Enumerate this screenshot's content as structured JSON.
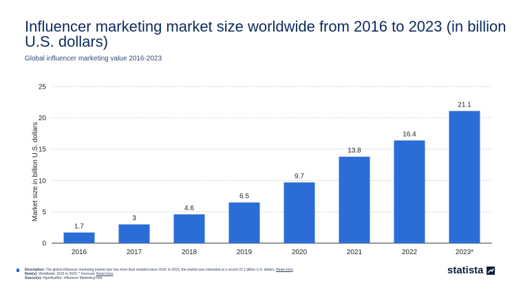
{
  "header": {
    "title": "Influencer marketing market size worldwide from 2016 to 2023 (in billion U.S. dollars)",
    "subtitle": "Global influencer marketing value 2016-2023"
  },
  "footer": {
    "description_label": "Description:",
    "description_text": "The global influencer marketing market size has more than doubled since 2019. In 2023, the market was estimated at a record 21.1 billion U.S. dollars.",
    "read_more": "Read more",
    "notes_label": "Note(s):",
    "notes_text": "Worldwide; 2016 to 2022; * Forecast;",
    "notes_read_more": "Read more",
    "sources_label": "Source(s):",
    "sources_text": "HypeAuditor; Influencer Marketing Hub"
  },
  "logo": {
    "text": "statista",
    "icon": "statista-logo-icon"
  },
  "colors": {
    "bar": "#2b6dd6",
    "title": "#0b2a5b",
    "grid": "#b8b8b8"
  },
  "chart_data": {
    "type": "bar",
    "categories": [
      "2016",
      "2017",
      "2018",
      "2019",
      "2020",
      "2021",
      "2022",
      "2023*"
    ],
    "values": [
      1.7,
      3,
      4.6,
      6.5,
      9.7,
      13.8,
      16.4,
      21.1
    ],
    "data_labels": [
      "1.7",
      "3",
      "4.6",
      "6.5",
      "9.7",
      "13.8",
      "16.4",
      "21.1"
    ],
    "ylabel": "Market size in billion U.S. dollars",
    "xlabel": "",
    "ylim": [
      0,
      25
    ],
    "yticks": [
      0,
      5,
      10,
      15,
      20,
      25
    ],
    "grid": true
  }
}
